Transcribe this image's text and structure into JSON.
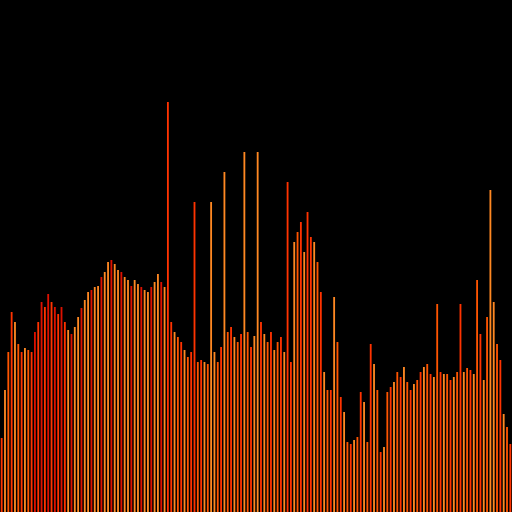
{
  "chart_data": {
    "type": "bar",
    "title": "",
    "xlabel": "",
    "ylabel": "",
    "ylim": [
      0,
      512
    ],
    "grid": false,
    "legend": "none",
    "background": "#000000",
    "colors": [
      "#ff3300",
      "#ff5500",
      "#dd1100",
      "#ff8822"
    ],
    "values": [
      74,
      122,
      160,
      200,
      190,
      168,
      160,
      164,
      162,
      160,
      180,
      190,
      210,
      205,
      218,
      210,
      205,
      198,
      205,
      190,
      182,
      178,
      185,
      195,
      204,
      212,
      220,
      222,
      225,
      226,
      235,
      240,
      250,
      252,
      248,
      242,
      240,
      235,
      232,
      226,
      232,
      228,
      225,
      222,
      220,
      225,
      230,
      238,
      230,
      225,
      410,
      190,
      180,
      175,
      170,
      162,
      155,
      160,
      310,
      150,
      152,
      150,
      148,
      310,
      160,
      150,
      165,
      340,
      180,
      185,
      175,
      170,
      178,
      360,
      180,
      165,
      176,
      360,
      190,
      178,
      170,
      180,
      162,
      170,
      175,
      160,
      330,
      150,
      270,
      280,
      290,
      260,
      300,
      275,
      270,
      250,
      220,
      140,
      122,
      122,
      215,
      170,
      115,
      100,
      70,
      68,
      72,
      75,
      120,
      110,
      70,
      168,
      148,
      122,
      60,
      65,
      120,
      125,
      130,
      140,
      135,
      145,
      130,
      122,
      128,
      132,
      140,
      145,
      148,
      138,
      135,
      208,
      140,
      138,
      138,
      132,
      135,
      140,
      208,
      140,
      144,
      142,
      138,
      232,
      178,
      132,
      195,
      322,
      210,
      168,
      152,
      98,
      85,
      68
    ]
  }
}
